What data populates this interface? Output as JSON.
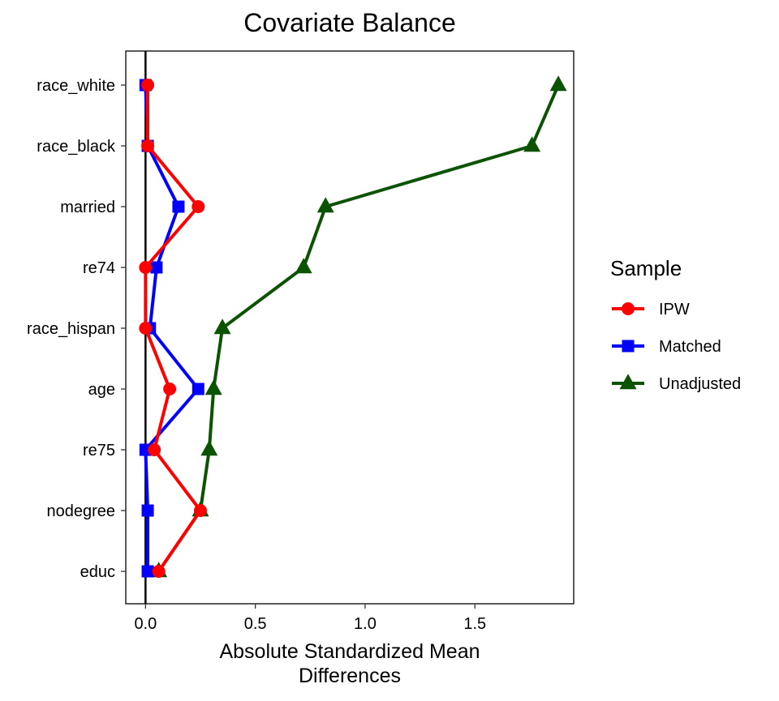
{
  "chart_data": {
    "type": "line",
    "title": "Covariate Balance",
    "xlabel": [
      "Absolute Standardized Mean",
      "Differences"
    ],
    "ylabel": "",
    "xlim": [
      -0.09,
      1.95
    ],
    "x_ticks": [
      0.0,
      0.5,
      1.0,
      1.5
    ],
    "x_tick_labels": [
      "0.0",
      "0.5",
      "1.0",
      "1.5"
    ],
    "categories": [
      "race_white",
      "race_black",
      "married",
      "re74",
      "race_hispan",
      "age",
      "re75",
      "nodegree",
      "educ"
    ],
    "reference_line_x": 0,
    "grid": false,
    "legend_position": "right",
    "legend_title": "Sample",
    "series": [
      {
        "name": "Unadjusted",
        "color": "#0b5300",
        "marker": "triangle",
        "values": [
          1.88,
          1.76,
          0.82,
          0.72,
          0.35,
          0.31,
          0.29,
          0.25,
          0.06
        ]
      },
      {
        "name": "Matched",
        "color": "#0000ff",
        "marker": "square",
        "values": [
          0.0,
          0.01,
          0.15,
          0.05,
          0.02,
          0.24,
          0.0,
          0.01,
          0.01
        ]
      },
      {
        "name": "IPW",
        "color": "#ff0000",
        "marker": "circle",
        "values": [
          0.01,
          0.01,
          0.24,
          0.0,
          0.0,
          0.11,
          0.04,
          0.25,
          0.06
        ]
      }
    ],
    "legend_order": [
      "IPW",
      "Matched",
      "Unadjusted"
    ]
  }
}
